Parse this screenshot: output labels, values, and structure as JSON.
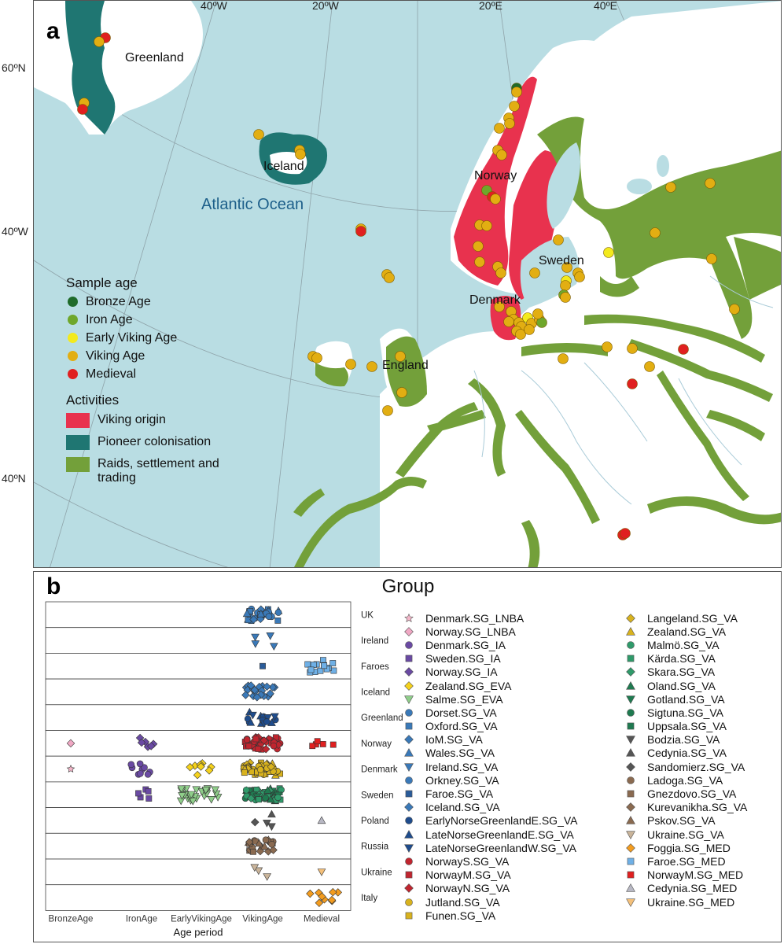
{
  "panel_a": {
    "letter": "a",
    "lon_labels": [
      "40ºW",
      "20ºW",
      "20ºE",
      "40ºE"
    ],
    "lat_labels": [
      "60ºN",
      "40ºW",
      "40ºN"
    ],
    "places": {
      "greenland": "Greenland",
      "iceland": "Iceland",
      "atlantic": "Atlantic Ocean",
      "norway": "Norway",
      "sweden": "Sweden",
      "denmark": "Denmark",
      "england": "England"
    },
    "legend": {
      "age_title": "Sample age",
      "ages": [
        {
          "label": "Bronze Age",
          "color": "#1f6b2a"
        },
        {
          "label": "Iron Age",
          "color": "#6fa72b"
        },
        {
          "label": "Early Viking Age",
          "color": "#f3ea1d"
        },
        {
          "label": "Viking Age",
          "color": "#e2ae12"
        },
        {
          "label": "Medieval",
          "color": "#e02020"
        }
      ],
      "activities_title": "Activities",
      "activities": [
        {
          "label": "Viking origin",
          "color": "#e8324e"
        },
        {
          "label": "Pioneer colonisation",
          "color": "#1f7672"
        },
        {
          "label": "Raids, settlement and trading",
          "color": "#73a03a"
        }
      ]
    },
    "colors": {
      "ocean": "#b9dde3",
      "land": "#ffffff",
      "viking": "#e8324e",
      "pioneer": "#1f7672",
      "raid": "#73a03a"
    }
  },
  "panel_b": {
    "letter": "b",
    "title": "Group",
    "x_axis_title": "Age period",
    "age_periods": [
      "BronzeAge",
      "IronAge",
      "EarlyVikingAge",
      "VikingAge",
      "Medieval"
    ],
    "regions": [
      "UK",
      "Ireland",
      "Faroes",
      "Iceland",
      "Greenland",
      "Norway",
      "Denmark",
      "Sweden",
      "Poland",
      "Russia",
      "Ukraine",
      "Italy"
    ],
    "legend_col1": [
      {
        "label": "Denmark.SG_LNBA",
        "shape": "star",
        "color": "#f4b6c9"
      },
      {
        "label": "Norway.SG_LNBA",
        "shape": "diamond",
        "color": "#f0a8c4"
      },
      {
        "label": "Denmark.SG_IA",
        "shape": "circle",
        "color": "#6a4aa3"
      },
      {
        "label": "Sweden.SG_IA",
        "shape": "square",
        "color": "#6a4aa3"
      },
      {
        "label": "Norway.SG_IA",
        "shape": "diamond",
        "color": "#6a4aa3"
      },
      {
        "label": "Zealand.SG_EVA",
        "shape": "diamond",
        "color": "#f5d21c"
      },
      {
        "label": "Salme.SG_EVA",
        "shape": "tri_down",
        "color": "#8fce8a"
      },
      {
        "label": "Dorset.SG_VA",
        "shape": "circle",
        "color": "#3a79b8"
      },
      {
        "label": "Oxford.SG_VA",
        "shape": "square",
        "color": "#3a79b8"
      },
      {
        "label": "IoM.SG_VA",
        "shape": "diamond",
        "color": "#3a79b8"
      },
      {
        "label": "Wales.SG_VA",
        "shape": "tri_up",
        "color": "#3a79b8"
      },
      {
        "label": "Ireland.SG_VA",
        "shape": "tri_down",
        "color": "#3a79b8"
      },
      {
        "label": "Orkney.SG_VA",
        "shape": "circle",
        "color": "#3a79b8"
      },
      {
        "label": "Faroe.SG_VA",
        "shape": "square",
        "color": "#2a5c9a"
      },
      {
        "label": "Iceland.SG_VA",
        "shape": "diamond",
        "color": "#3a79b8"
      },
      {
        "label": "EarlyNorseGreenlandE.SG_VA",
        "shape": "circle",
        "color": "#1f4c8c"
      },
      {
        "label": "LateNorseGreenlandE.SG_VA",
        "shape": "tri_up",
        "color": "#1f4c8c"
      },
      {
        "label": "LateNorseGreenlandW.SG_VA",
        "shape": "tri_down",
        "color": "#1f4c8c"
      },
      {
        "label": "NorwayS.SG_VA",
        "shape": "circle",
        "color": "#c0252f"
      },
      {
        "label": "NorwayM.SG_VA",
        "shape": "square",
        "color": "#c0252f"
      },
      {
        "label": "NorwayN.SG_VA",
        "shape": "diamond",
        "color": "#c0252f"
      },
      {
        "label": "Jutland.SG_VA",
        "shape": "circle",
        "color": "#d8b21e"
      },
      {
        "label": "Funen.SG_VA",
        "shape": "square",
        "color": "#d8b21e"
      }
    ],
    "legend_col2": [
      {
        "label": "Langeland.SG_VA",
        "shape": "diamond",
        "color": "#d8b21e"
      },
      {
        "label": "Zealand.SG_VA",
        "shape": "tri_up",
        "color": "#d8b21e"
      },
      {
        "label": "Malmö.SG_VA",
        "shape": "circle",
        "color": "#2f9a6a"
      },
      {
        "label": "Kärda.SG_VA",
        "shape": "square",
        "color": "#2f9a6a"
      },
      {
        "label": "Skara.SG_VA",
        "shape": "diamond",
        "color": "#2f9a6a"
      },
      {
        "label": "Oland.SG_VA",
        "shape": "tri_up",
        "color": "#1f7a50"
      },
      {
        "label": "Gotland.SG_VA",
        "shape": "tri_down",
        "color": "#1f7a50"
      },
      {
        "label": "Sigtuna.SG_VA",
        "shape": "circle",
        "color": "#1f7a50"
      },
      {
        "label": "Uppsala.SG_VA",
        "shape": "square",
        "color": "#1f7a50"
      },
      {
        "label": "Bodzia.SG_VA",
        "shape": "tri_down",
        "color": "#555555"
      },
      {
        "label": "Cedynia.SG_VA",
        "shape": "tri_up",
        "color": "#555555"
      },
      {
        "label": "Sandomierz.SG_VA",
        "shape": "diamond",
        "color": "#555555"
      },
      {
        "label": "Ladoga.SG_VA",
        "shape": "circle",
        "color": "#8a6a50"
      },
      {
        "label": "Gnezdovo.SG_VA",
        "shape": "square",
        "color": "#8a6a50"
      },
      {
        "label": "Kurevanikha.SG_VA",
        "shape": "diamond",
        "color": "#8a6a50"
      },
      {
        "label": "Pskov.SG_VA",
        "shape": "tri_up",
        "color": "#8a6a50"
      },
      {
        "label": "Ukraine.SG_VA",
        "shape": "tri_down",
        "color": "#c9b49a"
      },
      {
        "label": "Foggia.SG_MED",
        "shape": "diamond",
        "color": "#f39c1f"
      },
      {
        "label": "Faroe.SG_MED",
        "shape": "square",
        "color": "#6fb0e6"
      },
      {
        "label": "NorwayM.SG_MED",
        "shape": "square",
        "color": "#e02020"
      },
      {
        "label": "Cedynia.SG_MED",
        "shape": "tri_up",
        "color": "#b8b8c4"
      },
      {
        "label": "Ukraine.SG_MED",
        "shape": "tri_down",
        "color": "#f4c07a"
      }
    ]
  }
}
